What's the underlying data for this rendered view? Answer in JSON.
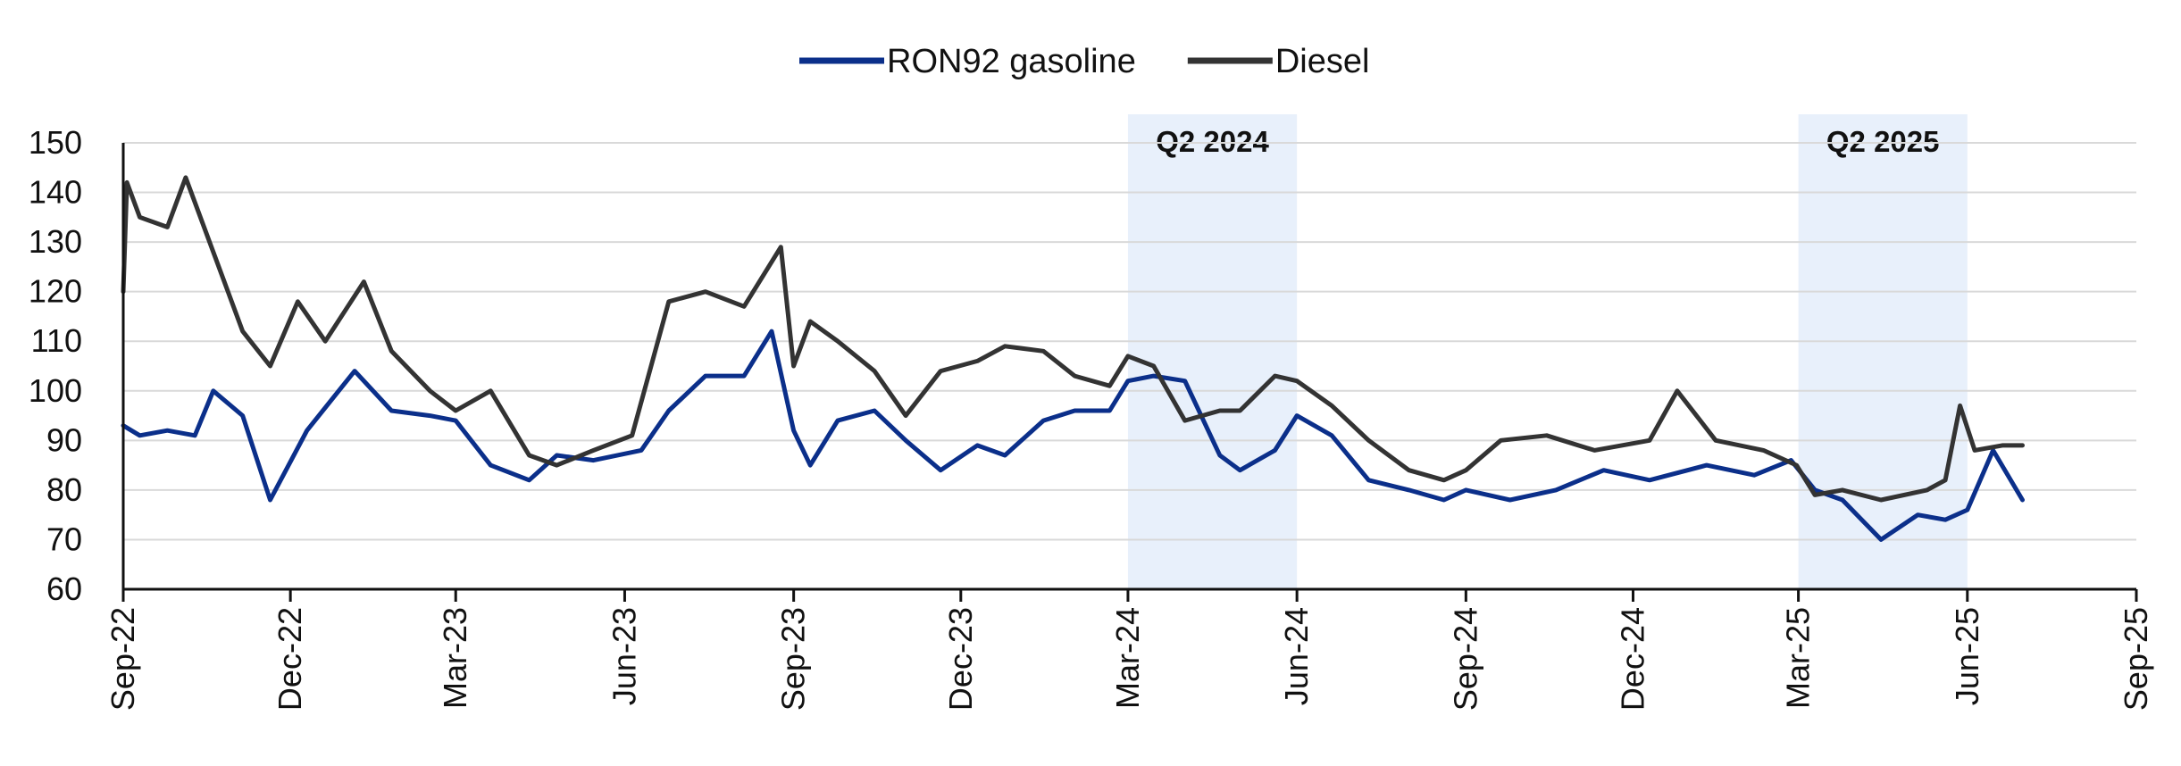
{
  "chart_data": {
    "type": "line",
    "title": "",
    "xlabel": "",
    "ylabel": "",
    "ylim": [
      60,
      150
    ],
    "yticks": [
      60,
      70,
      80,
      90,
      100,
      110,
      120,
      130,
      140,
      150
    ],
    "xlim": [
      "2022-09-01",
      "2025-09-01"
    ],
    "xticks": [
      "Sep-22",
      "Dec-22",
      "Mar-23",
      "Jun-23",
      "Sep-23",
      "Dec-23",
      "Mar-24",
      "Jun-24",
      "Sep-24",
      "Dec-24",
      "Mar-25",
      "Jun-25",
      "Sep-25"
    ],
    "grid": true,
    "legend_position": "top-center",
    "shaded_regions": [
      {
        "label": "Q2 2024",
        "start": "2024-03-01",
        "end": "2024-06-01"
      },
      {
        "label": "Q2 2025",
        "start": "2025-03-01",
        "end": "2025-06-01"
      }
    ],
    "series": [
      {
        "name": "RON92 gasoline",
        "color": "#0b2f8a",
        "x": [
          "2022-09-01",
          "2022-09-10",
          "2022-09-25",
          "2022-10-10",
          "2022-10-20",
          "2022-11-05",
          "2022-11-20",
          "2022-12-10",
          "2023-01-05",
          "2023-01-25",
          "2023-02-15",
          "2023-03-01",
          "2023-03-20",
          "2023-04-10",
          "2023-04-25",
          "2023-05-15",
          "2023-06-10",
          "2023-06-25",
          "2023-07-15",
          "2023-08-05",
          "2023-08-20",
          "2023-09-01",
          "2023-09-10",
          "2023-09-25",
          "2023-10-15",
          "2023-11-01",
          "2023-11-20",
          "2023-12-10",
          "2023-12-25",
          "2024-01-15",
          "2024-02-01",
          "2024-02-20",
          "2024-03-01",
          "2024-03-15",
          "2024-04-01",
          "2024-04-20",
          "2024-05-01",
          "2024-05-20",
          "2024-06-01",
          "2024-06-20",
          "2024-07-10",
          "2024-08-01",
          "2024-08-20",
          "2024-09-01",
          "2024-09-25",
          "2024-10-20",
          "2024-11-15",
          "2024-12-10",
          "2025-01-10",
          "2025-02-05",
          "2025-02-25",
          "2025-03-10",
          "2025-03-25",
          "2025-04-15",
          "2025-05-05",
          "2025-05-20",
          "2025-06-01",
          "2025-06-15",
          "2025-07-01"
        ],
        "values": [
          93,
          91,
          92,
          91,
          100,
          95,
          78,
          92,
          104,
          96,
          95,
          94,
          85,
          82,
          87,
          86,
          88,
          96,
          103,
          103,
          112,
          92,
          85,
          94,
          96,
          90,
          84,
          89,
          87,
          94,
          96,
          96,
          102,
          103,
          102,
          87,
          84,
          88,
          95,
          91,
          82,
          80,
          78,
          80,
          78,
          80,
          84,
          82,
          85,
          83,
          86,
          80,
          78,
          70,
          75,
          74,
          76,
          88,
          78
        ]
      },
      {
        "name": "Diesel",
        "color": "#333333",
        "x": [
          "2022-09-01",
          "2022-09-03",
          "2022-09-10",
          "2022-09-25",
          "2022-10-05",
          "2022-10-20",
          "2022-11-05",
          "2022-11-20",
          "2022-12-05",
          "2022-12-20",
          "2023-01-10",
          "2023-01-25",
          "2023-02-15",
          "2023-03-01",
          "2023-03-20",
          "2023-04-10",
          "2023-04-25",
          "2023-05-15",
          "2023-06-05",
          "2023-06-25",
          "2023-07-15",
          "2023-08-05",
          "2023-08-25",
          "2023-09-01",
          "2023-09-10",
          "2023-09-25",
          "2023-10-15",
          "2023-11-01",
          "2023-11-20",
          "2023-12-10",
          "2023-12-25",
          "2024-01-15",
          "2024-02-01",
          "2024-02-20",
          "2024-03-01",
          "2024-03-15",
          "2024-04-01",
          "2024-04-20",
          "2024-05-01",
          "2024-05-20",
          "2024-06-01",
          "2024-06-20",
          "2024-07-10",
          "2024-08-01",
          "2024-08-20",
          "2024-09-01",
          "2024-09-20",
          "2024-10-15",
          "2024-11-10",
          "2024-12-10",
          "2024-12-25",
          "2025-01-15",
          "2025-02-10",
          "2025-02-28",
          "2025-03-10",
          "2025-03-25",
          "2025-04-15",
          "2025-05-10",
          "2025-05-20",
          "2025-05-28",
          "2025-06-05",
          "2025-06-20",
          "2025-07-01"
        ],
        "values": [
          120,
          142,
          135,
          133,
          143,
          128,
          112,
          105,
          118,
          110,
          122,
          108,
          100,
          96,
          100,
          87,
          85,
          88,
          91,
          118,
          120,
          117,
          129,
          105,
          114,
          110,
          104,
          95,
          104,
          106,
          109,
          108,
          103,
          101,
          107,
          105,
          94,
          96,
          96,
          103,
          102,
          97,
          90,
          84,
          82,
          84,
          90,
          91,
          88,
          90,
          100,
          90,
          88,
          85,
          79,
          80,
          78,
          80,
          82,
          97,
          88,
          89,
          89
        ]
      }
    ]
  }
}
